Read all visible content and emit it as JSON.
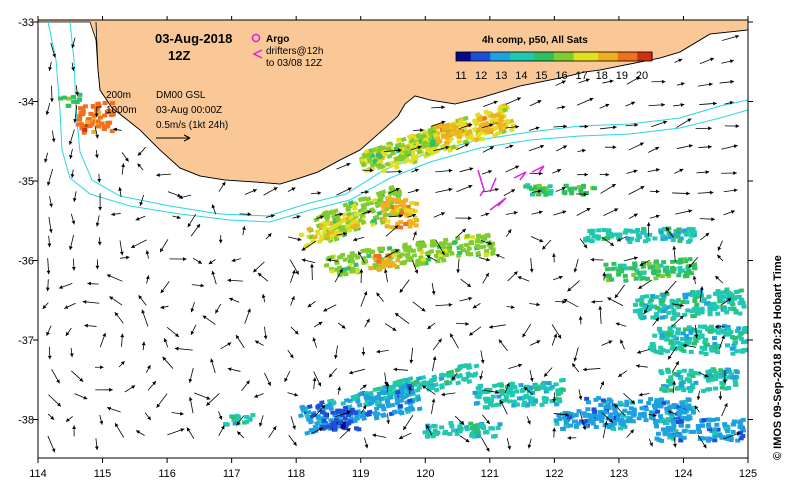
{
  "header": {
    "date": "03-Aug-2018",
    "time": "12Z",
    "argo_label": "Argo",
    "drifters_label": "drifters@12h",
    "drifters_sub": "to 03/08 12Z"
  },
  "legend": {
    "title": "4h comp, p50, All Sats",
    "ticks": [
      "11",
      "12",
      "13",
      "14",
      "15",
      "16",
      "17",
      "18",
      "19",
      "20"
    ],
    "colors": [
      "#08088a",
      "#1f4fd8",
      "#1fa0e0",
      "#20c8b0",
      "#30c060",
      "#80cc30",
      "#e0e020",
      "#f0b020",
      "#f07020",
      "#d03010"
    ]
  },
  "contours": {
    "label_200": "200m",
    "label_1000": "1000m"
  },
  "currents": {
    "source": "DM00 GSL",
    "datetime": "03-Aug 00:00Z",
    "scale": "0.5m/s (1kt 24h)"
  },
  "axes": {
    "lon_ticks": [
      "114",
      "115",
      "116",
      "117",
      "118",
      "119",
      "120",
      "121",
      "122",
      "123",
      "124",
      "125"
    ],
    "lat_ticks": [
      "-33",
      "-34",
      "-35",
      "-36",
      "-37",
      "-38"
    ]
  },
  "side_text": "© IMOS 09-Sep-2018 20:25 Hobart Time",
  "map_colors": {
    "land": "#f9c896",
    "coast": "#000000",
    "isobath": "#29d6e6",
    "argo": "#e020e0",
    "drifter": "#e020e0"
  }
}
